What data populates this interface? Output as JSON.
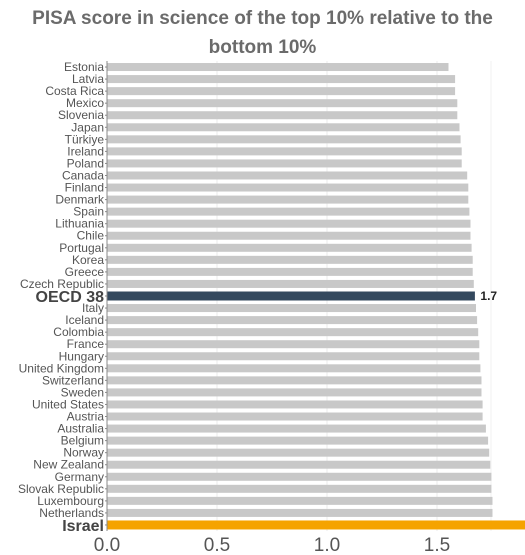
{
  "chart_data": {
    "type": "bar",
    "orientation": "horizontal",
    "title": "PISA score in science of the top 10% relative to the bottom 10%",
    "xlabel": "",
    "ylabel": "",
    "xlim": [
      0,
      1.9
    ],
    "xticks": [
      0.0,
      0.5,
      1.0,
      1.5
    ],
    "xtick_labels": [
      "0.0",
      "0.5",
      "1.0",
      "1.5"
    ],
    "grid": true,
    "colors": {
      "default": "#c8c8c8",
      "oecd": "#34495e",
      "israel": "#f5a300"
    },
    "categories": [
      "Estonia",
      "Latvia",
      "Costa Rica",
      "Mexico",
      "Slovenia",
      "Japan",
      "Türkiye",
      "Ireland",
      "Poland",
      "Canada",
      "Finland",
      "Denmark",
      "Spain",
      "Lithuania",
      "Chile",
      "Portugal",
      "Korea",
      "Greece",
      "Czech Republic",
      "OECD 38",
      "Italy",
      "Iceland",
      "Colombia",
      "France",
      "Hungary",
      "United Kingdom",
      "Switzerland",
      "Sweden",
      "United States",
      "Austria",
      "Australia",
      "Belgium",
      "Norway",
      "New Zealand",
      "Germany",
      "Slovak Republic",
      "Luxembourg",
      "Netherlands",
      "Israel"
    ],
    "values": [
      1.55,
      1.58,
      1.58,
      1.59,
      1.59,
      1.6,
      1.605,
      1.61,
      1.61,
      1.635,
      1.64,
      1.64,
      1.645,
      1.65,
      1.65,
      1.655,
      1.66,
      1.66,
      1.665,
      1.67,
      1.675,
      1.68,
      1.685,
      1.69,
      1.69,
      1.695,
      1.7,
      1.7,
      1.705,
      1.705,
      1.72,
      1.73,
      1.735,
      1.74,
      1.745,
      1.745,
      1.75,
      1.75,
      1.93
    ],
    "highlight": {
      "OECD 38": "oecd",
      "Israel": "israel"
    },
    "annotations": [
      {
        "category": "OECD 38",
        "text": "1.7"
      }
    ]
  }
}
